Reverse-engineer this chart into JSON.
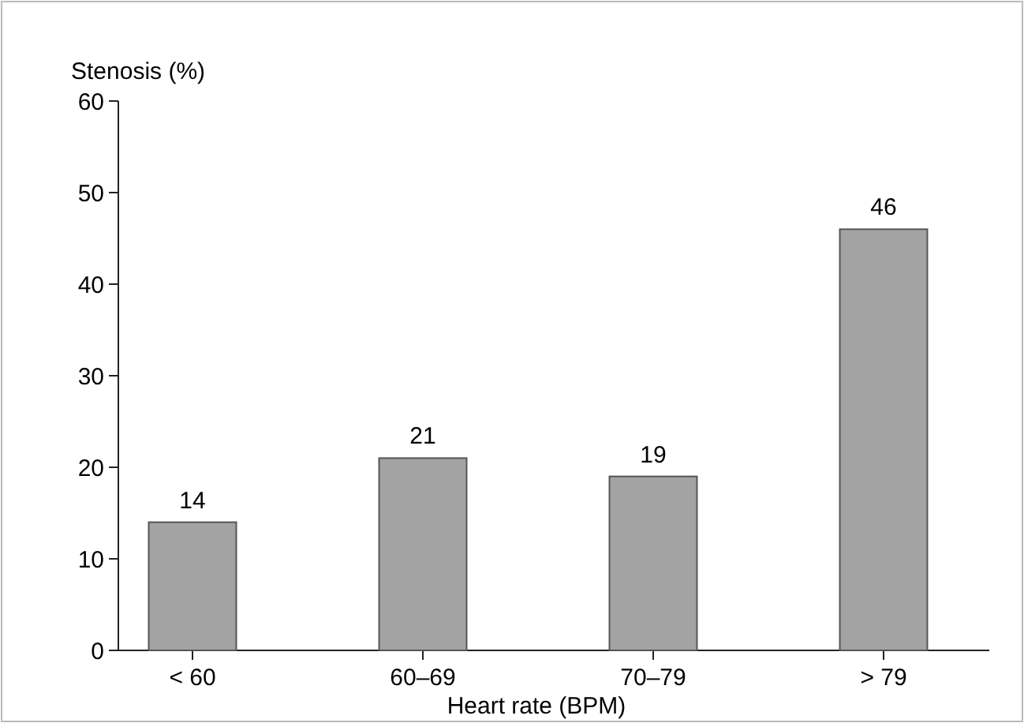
{
  "chart_data": {
    "type": "bar",
    "xlabel": "Heart rate (BPM)",
    "ylabel": "Stenosis (%)",
    "categories": [
      "< 60",
      "60–69",
      "70–79",
      "> 79"
    ],
    "values": [
      14,
      21,
      19,
      46
    ],
    "color": "#a3a3a3",
    "ylim": [
      0,
      60
    ],
    "yticks": [
      0,
      10,
      20,
      30,
      40,
      50,
      60
    ],
    "data_labels": true
  }
}
